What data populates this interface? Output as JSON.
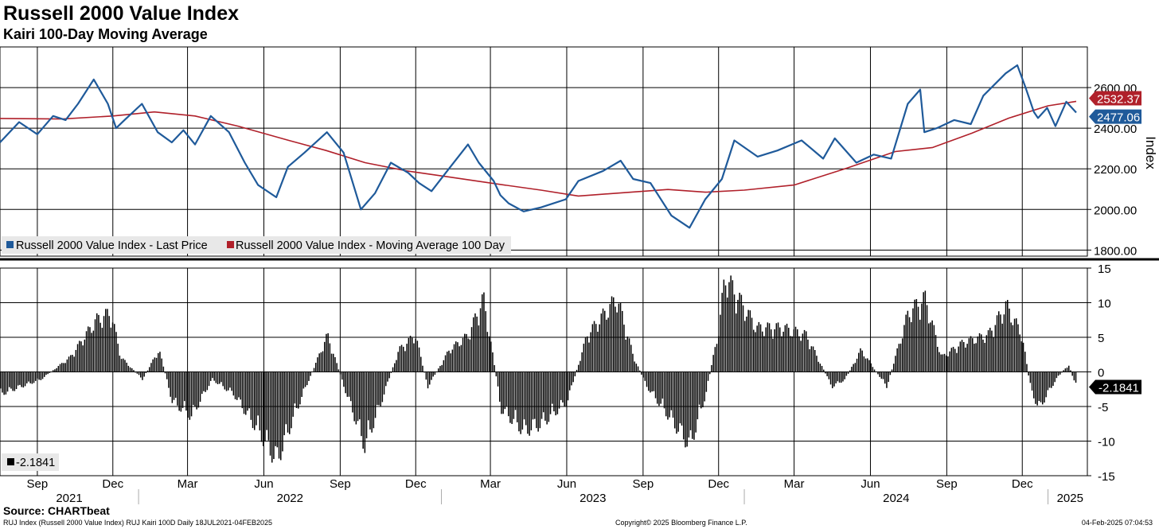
{
  "title": "Russell 2000 Value Index",
  "subtitle": "Kairi 100-Day Moving Average",
  "source": "Source: CHARTbeat",
  "footer_left": "RUJ Index (Russell 2000 Value Index) RUJ Kairi 100D  Daily 18JUL2021-04FEB2025",
  "footer_center": "Copyright© 2025 Bloomberg Finance L.P.",
  "footer_right": "04-Feb-2025 07:04:53",
  "colors": {
    "price": "#1f5a9a",
    "ma": "#b0202a",
    "kairi": "#000000",
    "grid": "#000000"
  },
  "chart_data": [
    {
      "type": "line",
      "title": "Russell 2000 Value Index",
      "ylabel": "Index",
      "ylim": [
        1770,
        2800
      ],
      "yticks": [
        1800,
        2000,
        2200,
        2400,
        2600
      ],
      "ytick_labels": [
        "1800.00",
        "2000.00",
        "2200.00",
        "2400.00",
        "2600.00"
      ],
      "x_range": [
        "2021-07-18",
        "2025-02-04"
      ],
      "legend": [
        "Russell 2000 Value Index - Last Price",
        "Russell 2000 Value Index - Moving Average 100 Day"
      ],
      "legend_position": "bottom-left",
      "last_values": [
        {
          "series": "Russell 2000 Value Index - Moving Average 100 Day",
          "label": "2532.37"
        },
        {
          "series": "Russell 2000 Value Index - Last Price",
          "label": "2477.06"
        }
      ],
      "series": [
        {
          "name": "Russell 2000 Value Index - Last Price",
          "x": [
            "2021-07-18",
            "2021-08-10",
            "2021-09-01",
            "2021-09-20",
            "2021-10-05",
            "2021-10-20",
            "2021-11-08",
            "2021-11-25",
            "2021-12-05",
            "2021-12-15",
            "2022-01-05",
            "2022-01-24",
            "2022-02-10",
            "2022-02-24",
            "2022-03-10",
            "2022-03-29",
            "2022-04-20",
            "2022-05-09",
            "2022-05-25",
            "2022-06-16",
            "2022-06-30",
            "2022-07-20",
            "2022-08-16",
            "2022-09-05",
            "2022-09-26",
            "2022-10-13",
            "2022-11-01",
            "2022-11-22",
            "2022-12-05",
            "2022-12-20",
            "2023-01-10",
            "2023-02-02",
            "2023-02-15",
            "2023-03-05",
            "2023-03-13",
            "2023-03-23",
            "2023-04-10",
            "2023-05-01",
            "2023-05-31",
            "2023-06-15",
            "2023-07-15",
            "2023-08-05",
            "2023-08-20",
            "2023-09-10",
            "2023-10-05",
            "2023-10-27",
            "2023-11-15",
            "2023-12-05",
            "2023-12-20",
            "2024-01-17",
            "2024-02-10",
            "2024-03-10",
            "2024-04-05",
            "2024-04-19",
            "2024-05-15",
            "2024-06-05",
            "2024-06-26",
            "2024-07-16",
            "2024-07-31",
            "2024-08-05",
            "2024-08-20",
            "2024-09-10",
            "2024-09-30",
            "2024-10-15",
            "2024-11-11",
            "2024-11-25",
            "2024-12-05",
            "2024-12-15",
            "2024-12-20",
            "2024-12-31",
            "2025-01-10",
            "2025-01-23",
            "2025-02-04"
          ],
          "values": [
            2330,
            2430,
            2370,
            2460,
            2440,
            2520,
            2640,
            2520,
            2400,
            2440,
            2520,
            2380,
            2330,
            2390,
            2320,
            2460,
            2380,
            2230,
            2120,
            2060,
            2210,
            2280,
            2380,
            2280,
            2000,
            2080,
            2230,
            2180,
            2130,
            2090,
            2200,
            2320,
            2230,
            2140,
            2070,
            2030,
            1990,
            2010,
            2050,
            2140,
            2190,
            2240,
            2150,
            2130,
            1970,
            1910,
            2050,
            2150,
            2340,
            2260,
            2290,
            2340,
            2250,
            2350,
            2230,
            2270,
            2250,
            2520,
            2590,
            2380,
            2400,
            2440,
            2420,
            2560,
            2670,
            2710,
            2600,
            2480,
            2450,
            2500,
            2410,
            2530,
            2477
          ]
        },
        {
          "name": "Russell 2000 Value Index - Moving Average 100 Day",
          "x": [
            "2021-07-18",
            "2021-10-01",
            "2021-12-01",
            "2022-01-20",
            "2022-03-10",
            "2022-05-01",
            "2022-07-01",
            "2022-08-15",
            "2022-10-01",
            "2022-11-20",
            "2023-01-10",
            "2023-03-01",
            "2023-05-01",
            "2023-06-15",
            "2023-08-01",
            "2023-10-01",
            "2023-11-15",
            "2024-01-01",
            "2024-03-01",
            "2024-05-01",
            "2024-07-01",
            "2024-08-15",
            "2024-10-01",
            "2024-11-15",
            "2025-01-01",
            "2025-02-04"
          ],
          "values": [
            2448,
            2445,
            2460,
            2480,
            2460,
            2410,
            2340,
            2290,
            2230,
            2190,
            2160,
            2130,
            2095,
            2066,
            2080,
            2098,
            2085,
            2095,
            2120,
            2200,
            2285,
            2305,
            2375,
            2450,
            2510,
            2532
          ]
        }
      ]
    },
    {
      "type": "bar",
      "title": "RUJ Kairi 100D",
      "ylim": [
        -15,
        15
      ],
      "yticks": [
        -15,
        -10,
        -5,
        0,
        5,
        10,
        15
      ],
      "ytick_labels": [
        "-15",
        "-10",
        "-5",
        "0",
        "5",
        "10",
        "15"
      ],
      "legend": [
        "-2.1841"
      ],
      "legend_position": "bottom-left",
      "last_value_label": "-2.1841",
      "series": [
        {
          "name": "Kairi 100D",
          "x": [
            "2021-07-18",
            "2021-09-05",
            "2021-10-10",
            "2021-11-10",
            "2021-11-28",
            "2021-12-10",
            "2022-01-05",
            "2022-01-25",
            "2022-02-10",
            "2022-03-05",
            "2022-03-30",
            "2022-04-25",
            "2022-05-25",
            "2022-06-16",
            "2022-07-10",
            "2022-08-16",
            "2022-09-05",
            "2022-09-30",
            "2022-10-20",
            "2022-11-10",
            "2022-11-30",
            "2022-12-15",
            "2023-01-10",
            "2023-02-02",
            "2023-02-20",
            "2023-03-05",
            "2023-03-13",
            "2023-04-10",
            "2023-05-01",
            "2023-06-01",
            "2023-06-25",
            "2023-07-31",
            "2023-08-20",
            "2023-09-05",
            "2023-09-25",
            "2023-10-27",
            "2023-11-15",
            "2023-12-01",
            "2023-12-08",
            "2024-01-15",
            "2024-02-15",
            "2024-03-15",
            "2024-04-15",
            "2024-05-01",
            "2024-05-20",
            "2024-06-20",
            "2024-07-16",
            "2024-08-05",
            "2024-08-25",
            "2024-09-20",
            "2024-10-20",
            "2024-11-11",
            "2024-11-30",
            "2024-12-10",
            "2024-12-20",
            "2025-01-10",
            "2025-01-25",
            "2025-02-04"
          ],
          "values": [
            -3,
            -1,
            2,
            7,
            8,
            2,
            -1,
            3,
            -4,
            -6,
            -1,
            -3,
            -8,
            -12,
            -5,
            5,
            -2,
            -10,
            -4,
            3,
            5,
            -2,
            3,
            5,
            10,
            1,
            -5,
            -8,
            -7,
            -4,
            5,
            10,
            2,
            -2,
            -5,
            -10,
            -3,
            6,
            13,
            6,
            6,
            5,
            -2,
            -1,
            3,
            -2,
            8,
            10,
            2,
            4,
            5,
            9,
            5,
            -2,
            -5,
            -1,
            1,
            -2.1841
          ]
        }
      ]
    }
  ],
  "x_axis": {
    "month_labels": [
      {
        "label": "Sep",
        "date": "2021-09-01"
      },
      {
        "label": "Dec",
        "date": "2021-12-01"
      },
      {
        "label": "Mar",
        "date": "2022-03-01"
      },
      {
        "label": "Jun",
        "date": "2022-06-01"
      },
      {
        "label": "Sep",
        "date": "2022-09-01"
      },
      {
        "label": "Dec",
        "date": "2022-12-01"
      },
      {
        "label": "Mar",
        "date": "2023-03-01"
      },
      {
        "label": "Jun",
        "date": "2023-06-01"
      },
      {
        "label": "Sep",
        "date": "2023-09-01"
      },
      {
        "label": "Dec",
        "date": "2023-12-01"
      },
      {
        "label": "Mar",
        "date": "2024-03-01"
      },
      {
        "label": "Jun",
        "date": "2024-06-01"
      },
      {
        "label": "Sep",
        "date": "2024-09-01"
      },
      {
        "label": "Dec",
        "date": "2024-12-01"
      }
    ],
    "year_labels": [
      {
        "label": "2021",
        "start": "2021-07-18",
        "end": "2022-01-01"
      },
      {
        "label": "2022",
        "start": "2022-01-01",
        "end": "2023-01-01"
      },
      {
        "label": "2023",
        "start": "2023-01-01",
        "end": "2024-01-01"
      },
      {
        "label": "2024",
        "start": "2024-01-01",
        "end": "2025-01-01"
      },
      {
        "label": "2025",
        "start": "2025-01-01",
        "end": "2025-02-04"
      }
    ]
  }
}
